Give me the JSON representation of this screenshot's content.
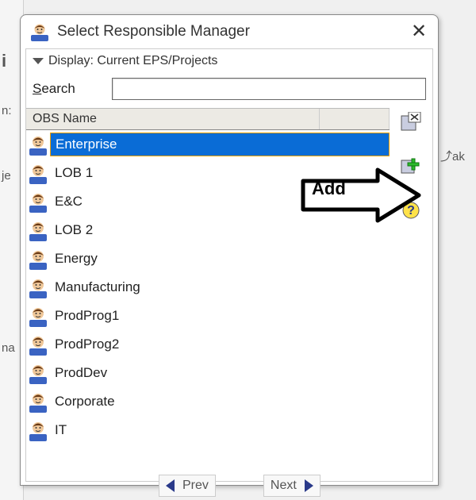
{
  "dialog": {
    "title": "Select Responsible Manager",
    "display_label": "Display: Current EPS/Projects",
    "search_label_first": "S",
    "search_label_rest": "earch",
    "search_value": "",
    "column_header": "OBS Name",
    "close_icon": "✕",
    "rows": [
      {
        "label": "Enterprise",
        "selected": true
      },
      {
        "label": "LOB 1",
        "selected": false
      },
      {
        "label": "E&C",
        "selected": false
      },
      {
        "label": "LOB 2",
        "selected": false
      },
      {
        "label": "Energy",
        "selected": false
      },
      {
        "label": "Manufacturing",
        "selected": false
      },
      {
        "label": "ProdProg1",
        "selected": false
      },
      {
        "label": "ProdProg2",
        "selected": false
      },
      {
        "label": "ProdDev",
        "selected": false
      },
      {
        "label": "Corporate",
        "selected": false
      },
      {
        "label": "IT",
        "selected": false
      }
    ],
    "sidebar": {
      "verify_icon": "verify-doc-icon",
      "add_icon": "add-plus-icon",
      "help_icon": "help-icon"
    }
  },
  "annotation": {
    "add_label": "Add"
  },
  "nav": {
    "prev": "Prev",
    "next": "Next"
  },
  "colors": {
    "selection_bg": "#0a6cd6",
    "selection_border": "#f5a000",
    "add_green": "#2bbb2b",
    "help_yellow": "#ffe24a",
    "avatar_hair": "#6a3a15",
    "avatar_face": "#f0c89a",
    "avatar_body": "#3a63c2"
  }
}
